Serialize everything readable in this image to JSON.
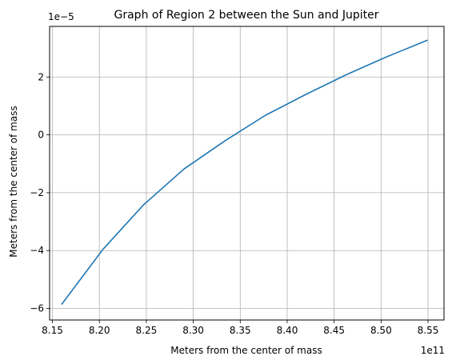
{
  "chart_data": {
    "type": "line",
    "title": "Graph of Region 2 between the Sun and Jupiter",
    "xlabel": "Meters from the center of mass",
    "ylabel": "Meters from the center of mass",
    "x_offset_text": "1e11",
    "y_offset_text": "1e−5",
    "xlim": [
      8.147,
      8.567
    ],
    "ylim": [
      -6.4,
      3.75
    ],
    "x_ticks": [
      8.15,
      8.2,
      8.25,
      8.3,
      8.35,
      8.4,
      8.45,
      8.5,
      8.55
    ],
    "x_tick_labels": [
      "8.15",
      "8.20",
      "8.25",
      "8.30",
      "8.35",
      "8.40",
      "8.45",
      "8.50",
      "8.55"
    ],
    "y_ticks": [
      -6,
      -4,
      -2,
      0,
      2
    ],
    "y_tick_labels": [
      "−6",
      "−4",
      "−2",
      "0",
      "2"
    ],
    "grid": true,
    "line_color": "#1f77b4",
    "series": [
      {
        "x": [
          8.16,
          8.204,
          8.247,
          8.29,
          8.334,
          8.377,
          8.42,
          8.463,
          8.506,
          8.549
        ],
        "y": [
          -5.85,
          -3.95,
          -2.42,
          -1.18,
          -0.2,
          0.68,
          1.4,
          2.08,
          2.7,
          3.27
        ]
      }
    ]
  }
}
